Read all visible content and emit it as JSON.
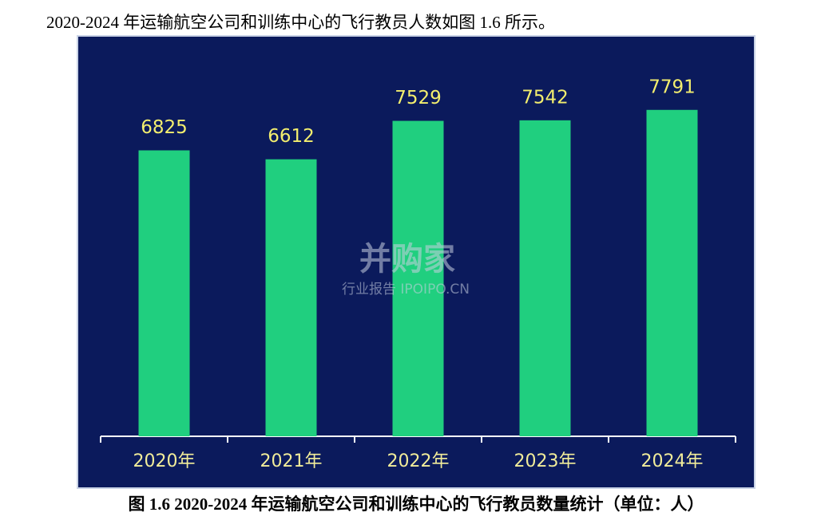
{
  "intro": "2020-2024 年运输航空公司和训练中心的飞行教员人数如图 1.6 所示。",
  "chart_data": {
    "type": "bar",
    "categories": [
      "2020年",
      "2021年",
      "2022年",
      "2023年",
      "2024年"
    ],
    "values": [
      6825,
      6612,
      7529,
      7542,
      7791
    ],
    "color": "#20cf7f",
    "ylim": [
      0,
      9500
    ]
  },
  "caption": "图 1.6 2020-2024 年运输航空公司和训练中心的飞行教员数量统计（单位：人）",
  "watermark": {
    "brand": "并购家",
    "site": "行业报告 IPOIPO.CN"
  }
}
